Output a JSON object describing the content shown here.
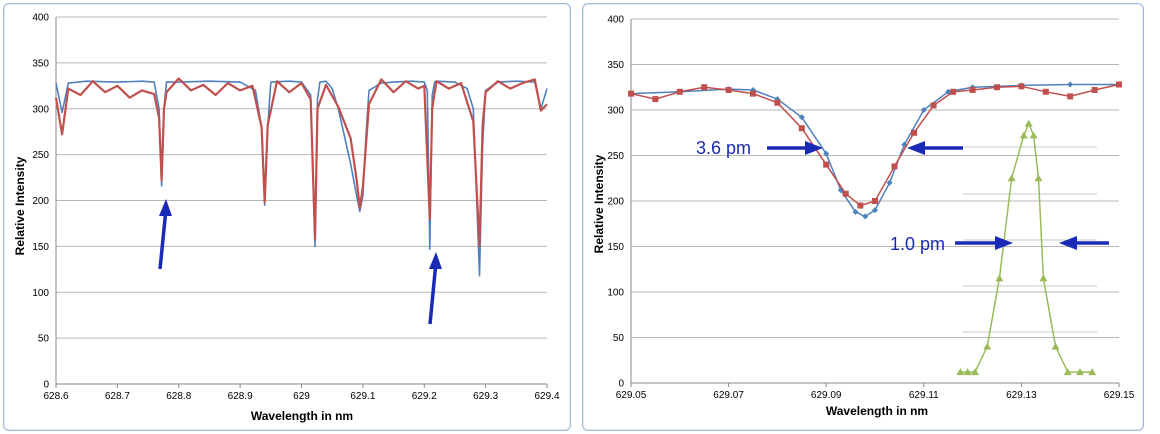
{
  "chart_data": [
    {
      "type": "line",
      "xlabel": "Wavelength in nm",
      "ylabel": "Relative Intensity",
      "xlim": [
        628.6,
        629.4
      ],
      "ylim": [
        0,
        400
      ],
      "x_ticks": [
        "628.6",
        "628.7",
        "628.8",
        "628.9",
        "629",
        "629.1",
        "629.2",
        "629.3",
        "629.4"
      ],
      "y_ticks": [
        "0",
        "50",
        "100",
        "150",
        "200",
        "250",
        "300",
        "350",
        "400"
      ],
      "grid": true,
      "legend": "none",
      "colors": {
        "model": "#4f81bd",
        "measured": "#c0504d",
        "arrow": "#1a2ab8"
      },
      "series": [
        {
          "color": "#4f81bd",
          "x": [
            628.6,
            628.61,
            628.62,
            628.65,
            628.7,
            628.74,
            628.76,
            628.768,
            628.772,
            628.776,
            628.78,
            628.8,
            628.85,
            628.9,
            628.925,
            628.935,
            628.94,
            628.945,
            628.95,
            628.98,
            629.0,
            629.015,
            629.022,
            629.026,
            629.03,
            629.04,
            629.05,
            629.06,
            629.07,
            629.08,
            629.09,
            629.095,
            629.1,
            629.105,
            629.11,
            629.13,
            629.15,
            629.18,
            629.2,
            629.205,
            629.209,
            629.213,
            629.217,
            629.22,
            629.25,
            629.27,
            629.28,
            629.285,
            629.29,
            629.295,
            629.3,
            629.32,
            629.35,
            629.38,
            629.39,
            629.4
          ],
          "y": [
            328,
            296,
            328,
            330,
            329,
            330,
            329,
            300,
            216,
            300,
            329,
            329,
            330,
            329,
            320,
            280,
            195,
            280,
            329,
            330,
            329,
            315,
            150,
            310,
            329,
            330,
            322,
            300,
            270,
            240,
            205,
            188,
            205,
            270,
            320,
            328,
            329,
            330,
            329,
            320,
            147,
            315,
            329,
            330,
            329,
            322,
            300,
            210,
            118,
            260,
            320,
            329,
            330,
            329,
            300,
            322
          ]
        },
        {
          "color": "#c0504d",
          "x": [
            628.6,
            628.61,
            628.62,
            628.64,
            628.66,
            628.68,
            628.7,
            628.72,
            628.74,
            628.76,
            628.768,
            628.772,
            628.776,
            628.78,
            628.8,
            628.82,
            628.84,
            628.86,
            628.88,
            628.9,
            628.92,
            628.935,
            628.94,
            628.945,
            628.96,
            628.98,
            629.0,
            629.015,
            629.022,
            629.026,
            629.04,
            629.06,
            629.08,
            629.09,
            629.095,
            629.1,
            629.11,
            629.13,
            629.15,
            629.17,
            629.19,
            629.2,
            629.209,
            629.213,
            629.22,
            629.24,
            629.26,
            629.28,
            629.29,
            629.295,
            629.3,
            629.32,
            629.34,
            629.36,
            629.38,
            629.39,
            629.4
          ],
          "y": [
            312,
            272,
            322,
            315,
            330,
            318,
            325,
            312,
            320,
            316,
            290,
            222,
            300,
            318,
            333,
            320,
            326,
            315,
            328,
            320,
            325,
            280,
            198,
            282,
            330,
            318,
            328,
            310,
            158,
            300,
            326,
            302,
            268,
            222,
            192,
            215,
            305,
            332,
            318,
            330,
            322,
            325,
            180,
            300,
            330,
            322,
            328,
            286,
            150,
            282,
            318,
            330,
            322,
            328,
            332,
            298,
            305
          ]
        }
      ],
      "annotations": [
        "arrow",
        "arrow"
      ]
    },
    {
      "type": "line",
      "xlabel": "Wavelength in nm",
      "ylabel": "Relative Intensity",
      "xlim": [
        629.05,
        629.15
      ],
      "ylim": [
        0,
        400
      ],
      "x_ticks": [
        "629.05",
        "629.07",
        "629.09",
        "629.11",
        "629.13",
        "629.15"
      ],
      "y_ticks": [
        "0",
        "50",
        "100",
        "150",
        "200",
        "250",
        "300",
        "350",
        "400"
      ],
      "grid": true,
      "legend": "none",
      "colors": {
        "model": "#4f81bd",
        "measured": "#c0504d",
        "instrument": "#9bbb59",
        "arrow": "#1a2ab8"
      },
      "series": [
        {
          "color": "#4f81bd",
          "marker": "diamond",
          "x": [
            629.05,
            629.06,
            629.07,
            629.075,
            629.08,
            629.085,
            629.09,
            629.093,
            629.096,
            629.098,
            629.1,
            629.103,
            629.106,
            629.11,
            629.115,
            629.12,
            629.13,
            629.14,
            629.15
          ],
          "y": [
            318,
            320,
            323,
            322,
            312,
            292,
            252,
            212,
            188,
            183,
            190,
            220,
            262,
            300,
            320,
            325,
            327,
            328,
            328
          ]
        },
        {
          "color": "#c0504d",
          "marker": "square",
          "x": [
            629.05,
            629.055,
            629.06,
            629.065,
            629.07,
            629.075,
            629.08,
            629.085,
            629.09,
            629.094,
            629.097,
            629.1,
            629.104,
            629.108,
            629.112,
            629.116,
            629.12,
            629.125,
            629.13,
            629.135,
            629.14,
            629.145,
            629.15
          ],
          "y": [
            318,
            312,
            320,
            325,
            322,
            318,
            308,
            280,
            240,
            208,
            195,
            200,
            238,
            275,
            305,
            320,
            322,
            325,
            326,
            320,
            315,
            322,
            328
          ]
        },
        {
          "color": "#9bbb59",
          "marker": "triangle",
          "x": [
            629.1175,
            629.119,
            629.1205,
            629.123,
            629.1255,
            629.128,
            629.1305,
            629.1315,
            629.1325,
            629.1335,
            629.1345,
            629.137,
            629.1395,
            629.142,
            629.1445
          ],
          "y": [
            12,
            12,
            12,
            40,
            115,
            225,
            272,
            285,
            272,
            225,
            115,
            40,
            12,
            12,
            12
          ]
        }
      ],
      "annotations": [
        "3.6 pm",
        "1.0 pm"
      ]
    }
  ]
}
